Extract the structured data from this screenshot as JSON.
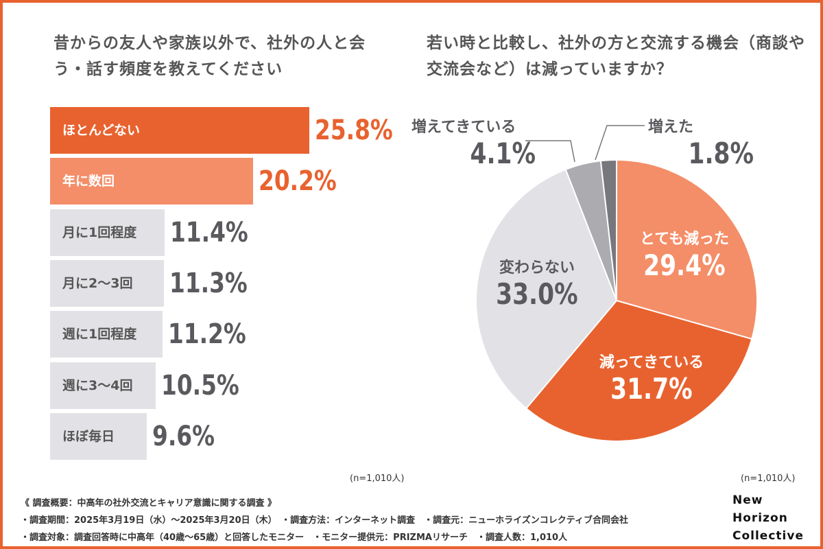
{
  "chart_data": [
    {
      "type": "bar",
      "orientation": "horizontal",
      "title": "昔からの友人や家族以外で、社外の人と会う・話す頻度を教えてください",
      "categories": [
        "ほとんどない",
        "年に数回",
        "月に1回程度",
        "月に2〜3回",
        "週に1回程度",
        "週に3〜4回",
        "ほぼ毎日"
      ],
      "values": [
        25.8,
        20.2,
        11.4,
        11.3,
        11.2,
        10.5,
        9.6
      ],
      "value_labels": [
        "25.8%",
        "20.2%",
        "11.4%",
        "11.3%",
        "11.2%",
        "10.5%",
        "9.6%"
      ],
      "colors": [
        "#E8622F",
        "#F48E68",
        "#E2E2E6",
        "#E2E2E6",
        "#E2E2E6",
        "#E2E2E6",
        "#E2E2E6"
      ],
      "note": "(n=1,010人)"
    },
    {
      "type": "pie",
      "title": "若い時と比較し、社外の方と交流する機会（商談や交流会など）は減っていますか？",
      "categories": [
        "とても減った",
        "減ってきている",
        "変わらない",
        "増えてきている",
        "増えた"
      ],
      "values": [
        29.4,
        31.7,
        33.0,
        4.1,
        1.8
      ],
      "value_labels": [
        "29.4%",
        "31.7%",
        "33.0%",
        "4.1%",
        "1.8%"
      ],
      "colors": [
        "#F48E68",
        "#E8622F",
        "#E2E2E6",
        "#ABABB0",
        "#77777D"
      ],
      "note": "(n=1,010人)"
    }
  ],
  "footer": {
    "line1": "《 調査概要：中高年の社外交流とキャリア意識に関する調査 》",
    "line2": "・調査期間：2025年3月19日（水）〜2025年3月20日（木）　・調査方法：インターネット調査　・調査元：ニューホライズンコレクティブ合同会社",
    "line3": "・調査対象：調査回答時に中高年（40歳〜65歳）と回答したモニター　・モニター提供元：PRIZMAリサーチ　・調査人数：1,010人"
  },
  "logo": [
    "New",
    "Horizon",
    "Collective"
  ],
  "accent_color": "#E8622F"
}
